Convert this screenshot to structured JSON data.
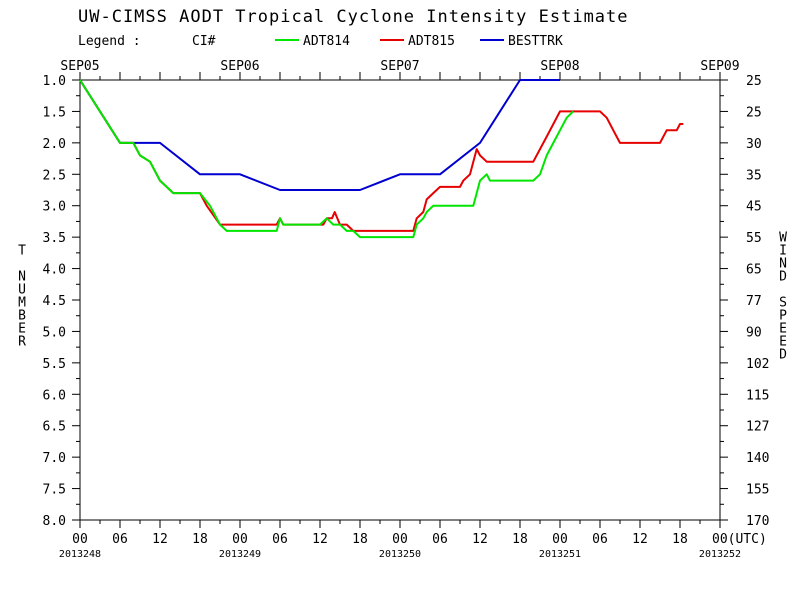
{
  "chart_data": {
    "type": "line",
    "title": "UW-CIMSS AODT Tropical Cyclone Intensity Estimate",
    "legend": {
      "label": "Legend :",
      "ci_label": "CI#",
      "entries": [
        {
          "name": "ADT814",
          "color": "#00e600"
        },
        {
          "name": "ADT815",
          "color": "#e60000"
        },
        {
          "name": "BESTTRK",
          "color": "#0000d0"
        }
      ]
    },
    "ylabel_left": "T NUMBER",
    "ylabel_right": "WIND SPEED",
    "ylim": [
      1.0,
      8.0
    ],
    "y_inverted": true,
    "xlim_hours": [
      0,
      96
    ],
    "y_ticks": [
      {
        "t": 1.0,
        "label": "1.0",
        "wind": "25"
      },
      {
        "t": 1.5,
        "label": "1.5",
        "wind": "25"
      },
      {
        "t": 2.0,
        "label": "2.0",
        "wind": "30"
      },
      {
        "t": 2.5,
        "label": "2.5",
        "wind": "35"
      },
      {
        "t": 3.0,
        "label": "3.0",
        "wind": "45"
      },
      {
        "t": 3.5,
        "label": "3.5",
        "wind": "55"
      },
      {
        "t": 4.0,
        "label": "4.0",
        "wind": "65"
      },
      {
        "t": 4.5,
        "label": "4.5",
        "wind": "77"
      },
      {
        "t": 5.0,
        "label": "5.0",
        "wind": "90"
      },
      {
        "t": 5.5,
        "label": "5.5",
        "wind": "102"
      },
      {
        "t": 6.0,
        "label": "6.0",
        "wind": "115"
      },
      {
        "t": 6.5,
        "label": "6.5",
        "wind": "127"
      },
      {
        "t": 7.0,
        "label": "7.0",
        "wind": "140"
      },
      {
        "t": 7.5,
        "label": "7.5",
        "wind": "155"
      },
      {
        "t": 8.0,
        "label": "8.0",
        "wind": "170"
      }
    ],
    "top_dates": [
      {
        "h": 0,
        "label": "SEP05"
      },
      {
        "h": 24,
        "label": "SEP06"
      },
      {
        "h": 48,
        "label": "SEP07"
      },
      {
        "h": 72,
        "label": "SEP08"
      },
      {
        "h": 96,
        "label": "SEP09"
      }
    ],
    "x_ticks": [
      {
        "h": 0,
        "label": "00"
      },
      {
        "h": 6,
        "label": "06"
      },
      {
        "h": 12,
        "label": "12"
      },
      {
        "h": 18,
        "label": "18"
      },
      {
        "h": 24,
        "label": "00"
      },
      {
        "h": 30,
        "label": "06"
      },
      {
        "h": 36,
        "label": "12"
      },
      {
        "h": 42,
        "label": "18"
      },
      {
        "h": 48,
        "label": "00"
      },
      {
        "h": 54,
        "label": "06"
      },
      {
        "h": 60,
        "label": "12"
      },
      {
        "h": 66,
        "label": "18"
      },
      {
        "h": 72,
        "label": "00"
      },
      {
        "h": 78,
        "label": "06"
      },
      {
        "h": 84,
        "label": "12"
      },
      {
        "h": 90,
        "label": "18"
      },
      {
        "h": 96,
        "label": "00(UTC)"
      }
    ],
    "julian_days": [
      {
        "h": 0,
        "label": "2013248"
      },
      {
        "h": 24,
        "label": "2013249"
      },
      {
        "h": 48,
        "label": "2013250"
      },
      {
        "h": 72,
        "label": "2013251"
      },
      {
        "h": 96,
        "label": "2013252"
      }
    ],
    "series": [
      {
        "name": "BESTTRK",
        "color": "#0000d0",
        "points": [
          [
            0,
            1.0
          ],
          [
            6,
            2.0
          ],
          [
            12,
            2.0
          ],
          [
            18,
            2.5
          ],
          [
            24,
            2.5
          ],
          [
            30,
            2.75
          ],
          [
            36,
            2.75
          ],
          [
            42,
            2.75
          ],
          [
            48,
            2.5
          ],
          [
            54,
            2.5
          ],
          [
            60,
            2.0
          ],
          [
            66,
            1.0
          ],
          [
            72,
            1.0
          ]
        ]
      },
      {
        "name": "ADT815",
        "color": "#e60000",
        "points": [
          [
            0,
            1.0
          ],
          [
            6,
            2.0
          ],
          [
            8,
            2.0
          ],
          [
            9,
            2.2
          ],
          [
            10.5,
            2.3
          ],
          [
            12,
            2.6
          ],
          [
            14,
            2.8
          ],
          [
            18,
            2.8
          ],
          [
            19,
            3.0
          ],
          [
            21,
            3.3
          ],
          [
            29.5,
            3.3
          ],
          [
            30,
            3.2
          ],
          [
            30.5,
            3.3
          ],
          [
            36.5,
            3.3
          ],
          [
            37,
            3.2
          ],
          [
            37.8,
            3.2
          ],
          [
            38.2,
            3.1
          ],
          [
            39,
            3.3
          ],
          [
            40,
            3.3
          ],
          [
            41,
            3.4
          ],
          [
            50,
            3.4
          ],
          [
            50.5,
            3.2
          ],
          [
            51.5,
            3.1
          ],
          [
            52,
            2.9
          ],
          [
            53,
            2.8
          ],
          [
            54,
            2.7
          ],
          [
            57,
            2.7
          ],
          [
            57.5,
            2.6
          ],
          [
            58.5,
            2.5
          ],
          [
            59.5,
            2.1
          ],
          [
            60,
            2.2
          ],
          [
            61,
            2.3
          ],
          [
            68,
            2.3
          ],
          [
            70,
            1.9
          ],
          [
            72,
            1.5
          ],
          [
            78,
            1.5
          ],
          [
            79,
            1.6
          ],
          [
            80,
            1.8
          ],
          [
            81,
            2.0
          ],
          [
            87,
            2.0
          ],
          [
            88,
            1.8
          ],
          [
            89.5,
            1.8
          ],
          [
            90,
            1.7
          ],
          [
            90.5,
            1.7
          ]
        ]
      },
      {
        "name": "ADT814",
        "color": "#00e600",
        "points": [
          [
            0,
            1.0
          ],
          [
            6,
            2.0
          ],
          [
            8,
            2.0
          ],
          [
            9,
            2.2
          ],
          [
            10.5,
            2.3
          ],
          [
            12,
            2.6
          ],
          [
            14,
            2.8
          ],
          [
            18,
            2.8
          ],
          [
            19.5,
            3.0
          ],
          [
            21,
            3.3
          ],
          [
            22,
            3.4
          ],
          [
            29.5,
            3.4
          ],
          [
            30,
            3.2
          ],
          [
            30.5,
            3.3
          ],
          [
            36,
            3.3
          ],
          [
            37,
            3.2
          ],
          [
            38,
            3.3
          ],
          [
            39,
            3.3
          ],
          [
            40,
            3.4
          ],
          [
            41,
            3.4
          ],
          [
            42,
            3.5
          ],
          [
            50,
            3.5
          ],
          [
            50.5,
            3.3
          ],
          [
            51.5,
            3.2
          ],
          [
            52,
            3.1
          ],
          [
            53,
            3.0
          ],
          [
            59,
            3.0
          ],
          [
            59.5,
            2.8
          ],
          [
            60,
            2.6
          ],
          [
            61,
            2.5
          ],
          [
            61.5,
            2.6
          ],
          [
            68,
            2.6
          ],
          [
            69,
            2.5
          ],
          [
            70,
            2.2
          ],
          [
            71,
            2.0
          ],
          [
            72,
            1.8
          ],
          [
            73,
            1.6
          ],
          [
            74,
            1.5
          ]
        ]
      }
    ]
  }
}
